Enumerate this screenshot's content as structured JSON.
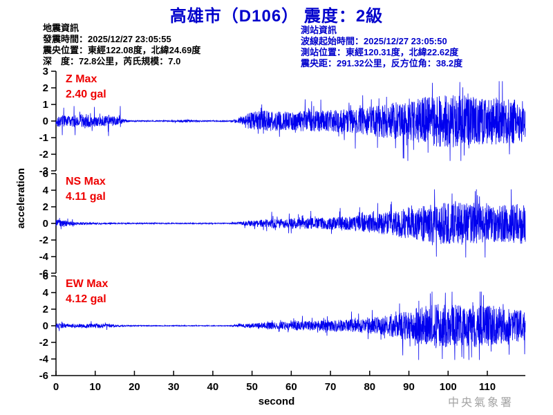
{
  "header": {
    "title": "高雄市（D106） 震度：2級"
  },
  "quake_info": {
    "heading": "地震資訊",
    "line1": "發震時間：2025/12/27 23:05:55",
    "line2": "震央位置：東經122.08度，北緯24.69度",
    "line3": "深　度：72.8公里，芮氏規模：7.0"
  },
  "station_info": {
    "heading": "測站資訊",
    "line1": "波線起始時間：2025/12/27 23:05:50",
    "line2": "測站位置：東經120.31度，北緯22.62度",
    "line3": "震央距：291.32公里，反方位角：38.2度"
  },
  "footer": {
    "agency": "中央氣象署"
  },
  "colors": {
    "accent_blue": "#0000CC",
    "label_red": "#EE0000",
    "trace_blue": "#0000EE",
    "watermark_gray": "#A3A3A3"
  },
  "chart_data": {
    "type": "line",
    "subtype": "seismogram-3-component",
    "xlabel": "second",
    "ylabel": "acceleration",
    "xlim": [
      0,
      119.7
    ],
    "xticks": [
      0,
      10,
      20,
      30,
      40,
      50,
      60,
      70,
      80,
      90,
      100,
      110
    ],
    "grid": false,
    "trace_color": "#0000EE",
    "series": [
      {
        "id": "z",
        "label": "Z Max",
        "max_label": "2.40 gal",
        "max_gal": 2.4,
        "ylim": [
          -3,
          3
        ],
        "yticks": [
          3,
          2,
          1,
          0,
          -1,
          -2,
          -3
        ],
        "envelope": [
          [
            0,
            0.3
          ],
          [
            1,
            0.38
          ],
          [
            3,
            0.3
          ],
          [
            7.5,
            0.45
          ],
          [
            9.5,
            0.3
          ],
          [
            13,
            0.32
          ],
          [
            15.5,
            0.28
          ],
          [
            17.5,
            0.1
          ],
          [
            19,
            0.035
          ],
          [
            29,
            0.035
          ],
          [
            31,
            0.07
          ],
          [
            34,
            0.09
          ],
          [
            37,
            0.04
          ],
          [
            44,
            0.035
          ],
          [
            46.5,
            0.12
          ],
          [
            48.5,
            0.45
          ],
          [
            51,
            0.6
          ],
          [
            54,
            0.62
          ],
          [
            58,
            0.58
          ],
          [
            63,
            0.62
          ],
          [
            68,
            0.65
          ],
          [
            73,
            0.7
          ],
          [
            78,
            0.8
          ],
          [
            82,
            0.95
          ],
          [
            86,
            1.1
          ],
          [
            90,
            1.25
          ],
          [
            94,
            1.45
          ],
          [
            98,
            1.55
          ],
          [
            102,
            1.6
          ],
          [
            106,
            1.5
          ],
          [
            110,
            1.4
          ],
          [
            114,
            1.45
          ],
          [
            119.7,
            1.25
          ]
        ],
        "spikes": [
          [
            1.6,
            -0.85
          ],
          [
            2.0,
            0.8
          ],
          [
            4.6,
            0.9
          ],
          [
            4.9,
            -0.85
          ],
          [
            9.8,
            0.85
          ],
          [
            13.4,
            -0.9
          ],
          [
            16.4,
            0.9
          ],
          [
            52.5,
            1.0
          ],
          [
            57,
            -0.95
          ],
          [
            96,
            2.3
          ],
          [
            100.5,
            -2.45
          ],
          [
            103,
            2.35
          ]
        ]
      },
      {
        "id": "ns",
        "label": "NS Max",
        "max_label": "4.11 gal",
        "max_gal": 4.11,
        "ylim": [
          -6,
          6
        ],
        "yticks": [
          6,
          4,
          2,
          0,
          -2,
          -4,
          -6
        ],
        "envelope": [
          [
            0,
            0.42
          ],
          [
            1.5,
            0.5
          ],
          [
            3,
            0.3
          ],
          [
            5,
            0.18
          ],
          [
            8,
            0.13
          ],
          [
            12,
            0.1
          ],
          [
            16,
            0.08
          ],
          [
            20,
            0.06
          ],
          [
            44,
            0.06
          ],
          [
            47,
            0.2
          ],
          [
            50,
            0.35
          ],
          [
            54,
            0.5
          ],
          [
            58,
            0.6
          ],
          [
            63,
            0.65
          ],
          [
            68,
            0.7
          ],
          [
            73,
            0.85
          ],
          [
            78,
            1.0
          ],
          [
            82,
            1.2
          ],
          [
            86,
            1.55
          ],
          [
            90,
            1.9
          ],
          [
            94,
            2.2
          ],
          [
            98,
            2.5
          ],
          [
            102,
            2.7
          ],
          [
            106,
            2.5
          ],
          [
            110,
            2.3
          ],
          [
            114,
            2.25
          ],
          [
            117,
            2.4
          ],
          [
            119.7,
            2.5
          ]
        ],
        "spikes": [
          [
            0.9,
            0.65
          ],
          [
            1.3,
            -0.7
          ],
          [
            4.2,
            0.5
          ],
          [
            55,
            1.4
          ],
          [
            60,
            -1.2
          ],
          [
            65,
            1.5
          ],
          [
            97,
            -4.0
          ],
          [
            101,
            3.6
          ],
          [
            104.5,
            -4.1
          ],
          [
            107.5,
            3.4
          ]
        ]
      },
      {
        "id": "ew",
        "label": "EW Max",
        "max_label": "4.12 gal",
        "max_gal": 4.12,
        "ylim": [
          -6,
          6
        ],
        "yticks": [
          6,
          4,
          2,
          0,
          -2,
          -4,
          -6
        ],
        "envelope": [
          [
            0,
            0.33
          ],
          [
            2,
            0.3
          ],
          [
            5,
            0.22
          ],
          [
            9,
            0.28
          ],
          [
            12,
            0.3
          ],
          [
            15,
            0.15
          ],
          [
            19,
            0.07
          ],
          [
            24,
            0.045
          ],
          [
            44,
            0.045
          ],
          [
            47,
            0.18
          ],
          [
            50,
            0.3
          ],
          [
            54,
            0.42
          ],
          [
            59,
            0.52
          ],
          [
            64,
            0.6
          ],
          [
            69,
            0.65
          ],
          [
            74,
            0.75
          ],
          [
            79,
            0.9
          ],
          [
            83,
            1.1
          ],
          [
            86,
            1.4
          ],
          [
            89,
            1.8
          ],
          [
            92,
            2.2
          ],
          [
            95,
            2.5
          ],
          [
            98,
            2.7
          ],
          [
            101,
            2.6
          ],
          [
            104,
            2.45
          ],
          [
            107,
            2.6
          ],
          [
            110,
            2.5
          ],
          [
            113,
            2.3
          ],
          [
            116,
            2.1
          ],
          [
            119.7,
            1.9
          ]
        ],
        "spikes": [
          [
            1.5,
            0.5
          ],
          [
            9,
            0.55
          ],
          [
            13,
            -0.5
          ],
          [
            95.5,
            3.9
          ],
          [
            98.5,
            -4.0
          ],
          [
            101,
            4.1
          ],
          [
            106,
            -3.8
          ],
          [
            109,
            3.7
          ]
        ]
      }
    ]
  }
}
